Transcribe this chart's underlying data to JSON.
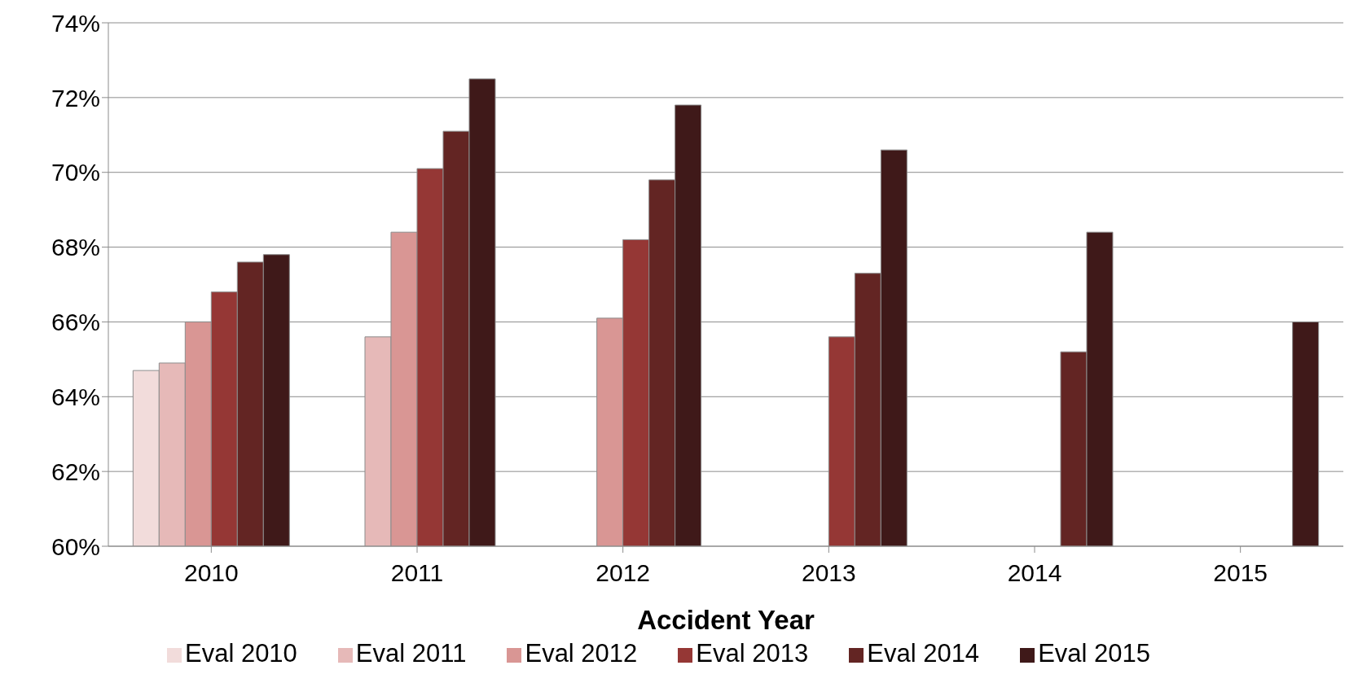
{
  "chart_data": {
    "type": "bar",
    "xlabel": "Accident Year",
    "categories": [
      "2010",
      "2011",
      "2012",
      "2013",
      "2014",
      "2015"
    ],
    "series": [
      {
        "name": "Eval 2010",
        "color": "#f2dcdb",
        "values": [
          64.7,
          null,
          null,
          null,
          null,
          null
        ]
      },
      {
        "name": "Eval 2011",
        "color": "#e6b9b8",
        "values": [
          64.9,
          65.6,
          null,
          null,
          null,
          null
        ]
      },
      {
        "name": "Eval 2012",
        "color": "#d99694",
        "values": [
          66.0,
          68.4,
          66.1,
          null,
          null,
          null
        ]
      },
      {
        "name": "Eval 2013",
        "color": "#953735",
        "values": [
          66.8,
          70.1,
          68.2,
          65.6,
          null,
          null
        ]
      },
      {
        "name": "Eval 2014",
        "color": "#632523",
        "values": [
          67.6,
          71.1,
          69.8,
          67.3,
          65.2,
          null
        ]
      },
      {
        "name": "Eval 2015",
        "color": "#3f1919",
        "values": [
          67.8,
          72.5,
          71.8,
          70.6,
          68.4,
          66.0
        ]
      }
    ],
    "ylim": [
      60,
      74
    ],
    "yticks": [
      {
        "value": 60,
        "label": "60%"
      },
      {
        "value": 62,
        "label": "62%"
      },
      {
        "value": 64,
        "label": "64%"
      },
      {
        "value": 66,
        "label": "66%"
      },
      {
        "value": 68,
        "label": "68%"
      },
      {
        "value": 70,
        "label": "70%"
      },
      {
        "value": 72,
        "label": "72%"
      },
      {
        "value": 74,
        "label": "74%"
      }
    ],
    "grid": "y",
    "legend": "bottom"
  }
}
